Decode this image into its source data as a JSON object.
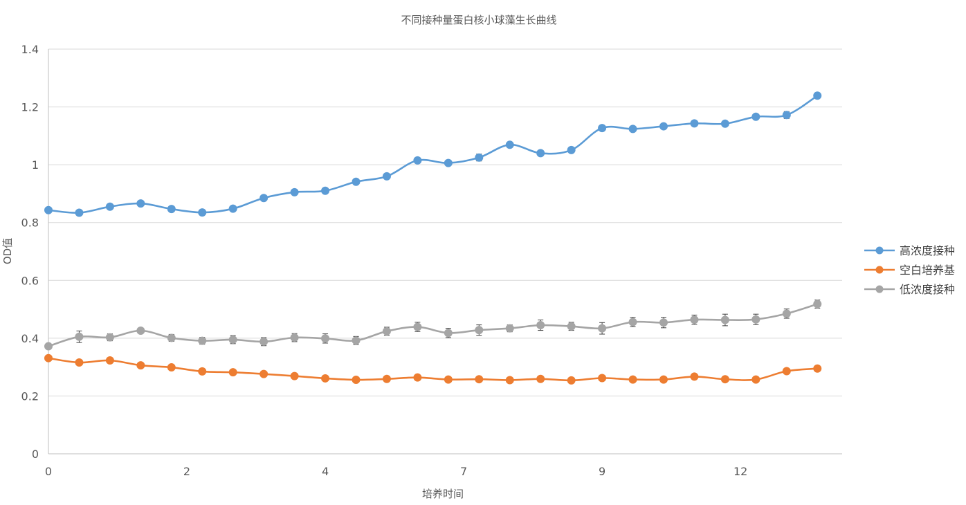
{
  "chart_data": {
    "type": "line",
    "title": "不同接种量蛋白核小球藻生长曲线",
    "xlabel": "培养时间",
    "ylabel": "OD值",
    "ylim": [
      0,
      1.4
    ],
    "y_ticks": [
      "0",
      "0.2",
      "0.4",
      "0.6",
      "0.8",
      "1",
      "1.2",
      "1.4"
    ],
    "x_tick_labels": [
      {
        "index": 0,
        "label": "0"
      },
      {
        "index": 4.5,
        "label": "2"
      },
      {
        "index": 9,
        "label": "4"
      },
      {
        "index": 13.5,
        "label": "7"
      },
      {
        "index": 18,
        "label": "9"
      },
      {
        "index": 22.5,
        "label": "12"
      }
    ],
    "point_count": 26,
    "grid": "horizontal",
    "smooth": true,
    "legend_position": "right",
    "series": [
      {
        "name": "高浓度接种",
        "color": "#5b9bd5",
        "values": [
          0.843,
          0.834,
          0.855,
          0.866,
          0.847,
          0.835,
          0.848,
          0.885,
          0.905,
          0.91,
          0.941,
          0.96,
          1.015,
          1.006,
          1.025,
          1.069,
          1.04,
          1.051,
          1.127,
          1.124,
          1.133,
          1.143,
          1.142,
          1.166,
          1.172,
          1.239
        ],
        "errors": [
          0,
          0,
          0,
          0,
          0,
          0,
          0,
          0,
          0,
          0,
          0,
          0,
          0.008,
          0,
          0.012,
          0.008,
          0,
          0,
          0.008,
          0,
          0.008,
          0,
          0.008,
          0,
          0.012,
          0
        ]
      },
      {
        "name": "空白培养基",
        "color": "#ed7d31",
        "values": [
          0.331,
          0.316,
          0.323,
          0.306,
          0.299,
          0.285,
          0.282,
          0.276,
          0.269,
          0.261,
          0.256,
          0.259,
          0.264,
          0.257,
          0.258,
          0.255,
          0.259,
          0.254,
          0.262,
          0.257,
          0.257,
          0.267,
          0.258,
          0.257,
          0.286,
          0.295
        ],
        "errors": [
          0,
          0,
          0,
          0,
          0,
          0,
          0,
          0,
          0,
          0,
          0,
          0,
          0,
          0,
          0,
          0,
          0,
          0,
          0,
          0,
          0,
          0,
          0,
          0,
          0,
          0
        ]
      },
      {
        "name": "低浓度接种",
        "color": "#a5a5a5",
        "values": [
          0.372,
          0.405,
          0.403,
          0.426,
          0.401,
          0.391,
          0.395,
          0.388,
          0.402,
          0.399,
          0.392,
          0.424,
          0.439,
          0.418,
          0.428,
          0.434,
          0.445,
          0.441,
          0.434,
          0.456,
          0.454,
          0.464,
          0.463,
          0.465,
          0.485,
          0.518
        ],
        "errors": [
          0,
          0.02,
          0.012,
          0,
          0.012,
          0.012,
          0.014,
          0.014,
          0.014,
          0.016,
          0.014,
          0.014,
          0.016,
          0.016,
          0.018,
          0.012,
          0.018,
          0.014,
          0.02,
          0.016,
          0.018,
          0.016,
          0.02,
          0.018,
          0.016,
          0.014
        ]
      }
    ]
  }
}
